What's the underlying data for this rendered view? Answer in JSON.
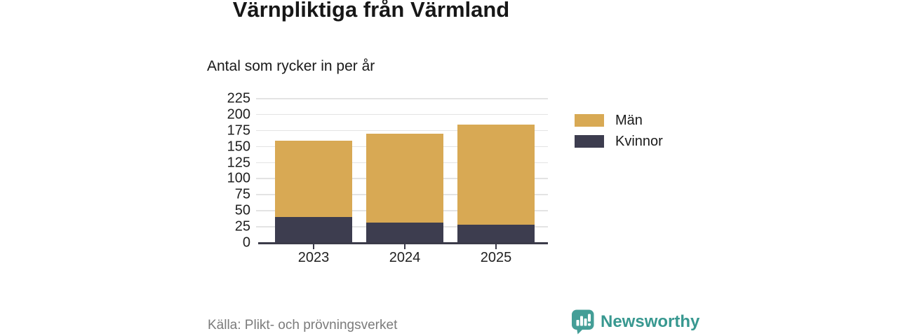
{
  "header": {
    "title": "Värnpliktiga från Värmland",
    "subtitle": "Antal som rycker in per år"
  },
  "footer": {
    "source": "Källa: Plikt- och prövningsverket",
    "logo_text": "Newsworthy"
  },
  "chart_data": {
    "type": "bar",
    "stacked": true,
    "title": "Värnpliktiga från Värmland",
    "subtitle": "Antal som rycker in per år",
    "categories": [
      "2023",
      "2024",
      "2025"
    ],
    "series": [
      {
        "name": "Kvinnor",
        "color": "#3d3d4f",
        "values": [
          39,
          31,
          27
        ]
      },
      {
        "name": "Män",
        "color": "#d8a954",
        "values": [
          119,
          138,
          157
        ]
      }
    ],
    "stack_totals": [
      158,
      169,
      184
    ],
    "ylim": [
      0,
      225
    ],
    "yticks": [
      0,
      25,
      50,
      75,
      100,
      125,
      150,
      175,
      200,
      225
    ],
    "grid": true,
    "legend": {
      "position": "right",
      "entries": [
        {
          "label": "Män",
          "color": "#d8a954"
        },
        {
          "label": "Kvinnor",
          "color": "#3d3d4f"
        }
      ]
    }
  },
  "colors": {
    "background": "#ffffff",
    "men_gold": "#d8a954",
    "women_navy": "#3d3d4f",
    "gridline": "#e3e3e3",
    "axis": "#3b3b49",
    "text": "#1a1a1a",
    "muted_text": "#7b7b7b",
    "brand_teal": "#389890"
  }
}
